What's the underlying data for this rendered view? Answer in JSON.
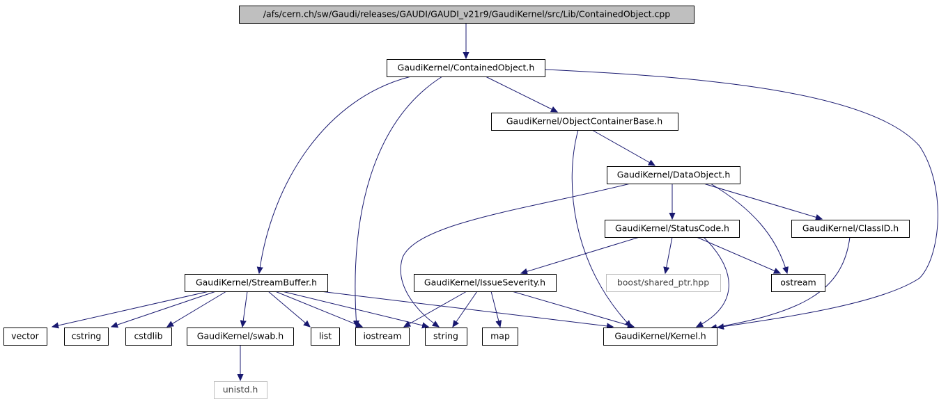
{
  "nodes": [
    {
      "label": "/afs/cern.ch/sw/Gaudi/releases/GAUDI/GAUDI_v21r9/GaudiKernel/src/Lib/ContainedObject.cpp"
    },
    {
      "label": "GaudiKernel/ContainedObject.h"
    },
    {
      "label": "GaudiKernel/ObjectContainerBase.h"
    },
    {
      "label": "GaudiKernel/DataObject.h"
    },
    {
      "label": "GaudiKernel/StatusCode.h"
    },
    {
      "label": "GaudiKernel/ClassID.h"
    },
    {
      "label": "GaudiKernel/StreamBuffer.h"
    },
    {
      "label": "GaudiKernel/IssueSeverity.h"
    },
    {
      "label": "boost/shared_ptr.hpp"
    },
    {
      "label": "ostream"
    },
    {
      "label": "vector"
    },
    {
      "label": "cstring"
    },
    {
      "label": "cstdlib"
    },
    {
      "label": "GaudiKernel/swab.h"
    },
    {
      "label": "list"
    },
    {
      "label": "iostream"
    },
    {
      "label": "string"
    },
    {
      "label": "map"
    },
    {
      "label": "GaudiKernel/Kernel.h"
    },
    {
      "label": "unistd.h"
    }
  ]
}
